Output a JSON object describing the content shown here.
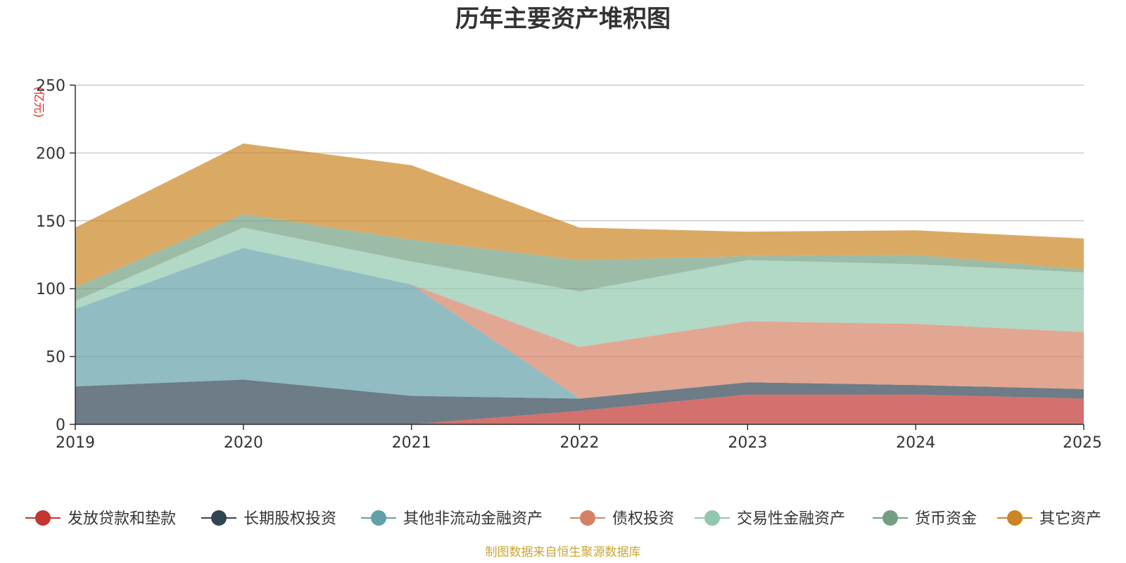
{
  "chart_data": {
    "type": "area",
    "stacked": true,
    "title": "历年主要资产堆积图",
    "unit_label": "(亿元)",
    "source": "制图数据来自恒生聚源数据库",
    "x": [
      "2019",
      "2020",
      "2021",
      "2022",
      "2023",
      "2024",
      "2025"
    ],
    "ylim": [
      0,
      250
    ],
    "yticks": [
      "0",
      "50",
      "100",
      "150",
      "200",
      "250"
    ],
    "grid": true,
    "legend_position": "bottom",
    "series": [
      {
        "name": "发放贷款和垫款",
        "color": "#c23531",
        "values": [
          0,
          0,
          0,
          10,
          22,
          22,
          19
        ]
      },
      {
        "name": "长期股权投资",
        "color": "#2f4554",
        "values": [
          28,
          33,
          21,
          9,
          9,
          7,
          7
        ]
      },
      {
        "name": "其他非流动金融资产",
        "color": "#61a0a8",
        "values": [
          57,
          97,
          82,
          0,
          0,
          0,
          0
        ]
      },
      {
        "name": "债权投资",
        "color": "#d48265",
        "values": [
          0,
          0,
          0,
          38,
          45,
          45,
          42
        ]
      },
      {
        "name": "交易性金融资产",
        "color": "#91c7ae",
        "values": [
          6,
          15,
          17,
          41,
          45,
          44,
          44
        ]
      },
      {
        "name": "货币资金",
        "color": "#749f83",
        "values": [
          10,
          10,
          16,
          23,
          3,
          7,
          2
        ]
      },
      {
        "name": "其它资产",
        "color": "#ca8622",
        "values": [
          44,
          52,
          55,
          24,
          18,
          18,
          23
        ]
      }
    ]
  }
}
